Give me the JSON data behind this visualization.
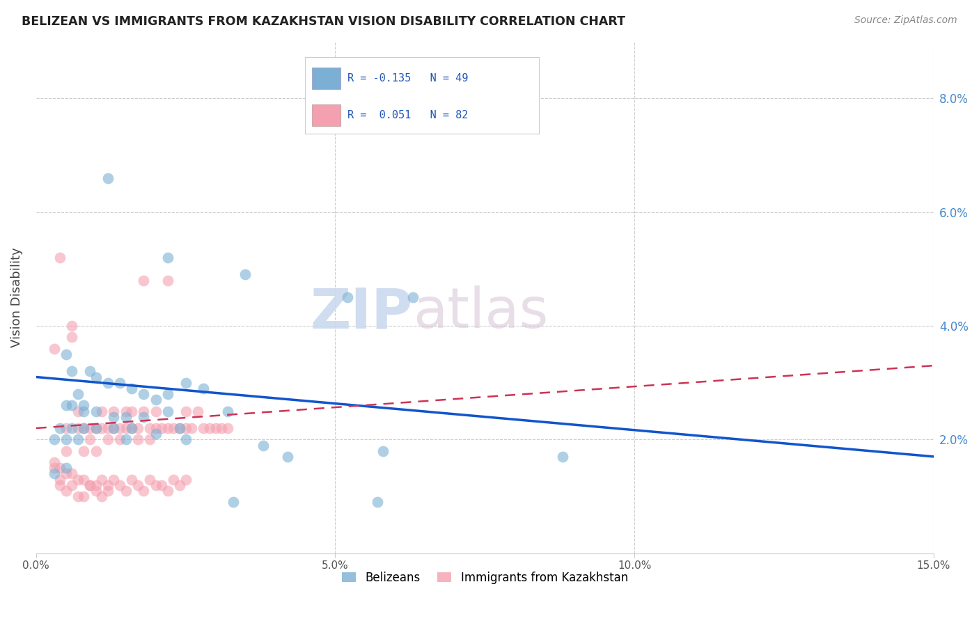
{
  "title": "BELIZEAN VS IMMIGRANTS FROM KAZAKHSTAN VISION DISABILITY CORRELATION CHART",
  "source": "Source: ZipAtlas.com",
  "ylabel": "Vision Disability",
  "ylabel_right_ticks": [
    "2.0%",
    "4.0%",
    "6.0%",
    "8.0%"
  ],
  "ylabel_right_vals": [
    0.02,
    0.04,
    0.06,
    0.08
  ],
  "xlim": [
    0.0,
    0.15
  ],
  "ylim": [
    0.0,
    0.09
  ],
  "xtick_vals": [
    0.0,
    0.05,
    0.1,
    0.15
  ],
  "xtick_labels": [
    "0.0%",
    "5.0%",
    "10.0%",
    "15.0%"
  ],
  "legend_blue_label": "R = -0.135   N = 49",
  "legend_pink_label": "R =  0.051   N = 82",
  "legend_label_blue": "Belizeans",
  "legend_label_pink": "Immigrants from Kazakhstan",
  "blue_color": "#7bafd4",
  "pink_color": "#f4a0b0",
  "blue_line_color": "#1155cc",
  "pink_line_color": "#cc3355",
  "watermark_zip": "ZIP",
  "watermark_atlas": "atlas",
  "blue_scatter_x": [
    0.012,
    0.022,
    0.005,
    0.006,
    0.007,
    0.008,
    0.009,
    0.01,
    0.012,
    0.014,
    0.016,
    0.018,
    0.02,
    0.022,
    0.025,
    0.028,
    0.032,
    0.005,
    0.006,
    0.008,
    0.01,
    0.013,
    0.015,
    0.018,
    0.022,
    0.004,
    0.006,
    0.008,
    0.01,
    0.013,
    0.016,
    0.02,
    0.024,
    0.003,
    0.005,
    0.007,
    0.015,
    0.025,
    0.038,
    0.042,
    0.058,
    0.063,
    0.088,
    0.052,
    0.005,
    0.003,
    0.057,
    0.033,
    0.035
  ],
  "blue_scatter_y": [
    0.066,
    0.052,
    0.035,
    0.032,
    0.028,
    0.026,
    0.032,
    0.031,
    0.03,
    0.03,
    0.029,
    0.028,
    0.027,
    0.028,
    0.03,
    0.029,
    0.025,
    0.026,
    0.026,
    0.025,
    0.025,
    0.024,
    0.024,
    0.024,
    0.025,
    0.022,
    0.022,
    0.022,
    0.022,
    0.022,
    0.022,
    0.021,
    0.022,
    0.02,
    0.02,
    0.02,
    0.02,
    0.02,
    0.019,
    0.017,
    0.018,
    0.045,
    0.017,
    0.045,
    0.015,
    0.014,
    0.009,
    0.009,
    0.049
  ],
  "pink_scatter_x": [
    0.003,
    0.004,
    0.005,
    0.005,
    0.006,
    0.006,
    0.007,
    0.007,
    0.008,
    0.008,
    0.009,
    0.009,
    0.01,
    0.01,
    0.011,
    0.011,
    0.012,
    0.012,
    0.013,
    0.013,
    0.014,
    0.014,
    0.015,
    0.015,
    0.016,
    0.016,
    0.017,
    0.017,
    0.018,
    0.018,
    0.019,
    0.019,
    0.02,
    0.02,
    0.021,
    0.022,
    0.022,
    0.023,
    0.024,
    0.025,
    0.025,
    0.026,
    0.027,
    0.028,
    0.029,
    0.03,
    0.031,
    0.032,
    0.003,
    0.004,
    0.004,
    0.005,
    0.006,
    0.007,
    0.008,
    0.009,
    0.01,
    0.011,
    0.012,
    0.013,
    0.014,
    0.015,
    0.016,
    0.017,
    0.018,
    0.019,
    0.02,
    0.021,
    0.022,
    0.023,
    0.024,
    0.025,
    0.003,
    0.004,
    0.005,
    0.006,
    0.007,
    0.008,
    0.009,
    0.01,
    0.011,
    0.012
  ],
  "pink_scatter_y": [
    0.036,
    0.052,
    0.022,
    0.018,
    0.04,
    0.038,
    0.025,
    0.022,
    0.022,
    0.018,
    0.022,
    0.02,
    0.022,
    0.018,
    0.025,
    0.022,
    0.022,
    0.02,
    0.025,
    0.022,
    0.022,
    0.02,
    0.025,
    0.022,
    0.025,
    0.022,
    0.022,
    0.02,
    0.025,
    0.048,
    0.022,
    0.02,
    0.025,
    0.022,
    0.022,
    0.022,
    0.048,
    0.022,
    0.022,
    0.025,
    0.022,
    0.022,
    0.025,
    0.022,
    0.022,
    0.022,
    0.022,
    0.022,
    0.015,
    0.013,
    0.012,
    0.011,
    0.012,
    0.01,
    0.01,
    0.012,
    0.011,
    0.01,
    0.011,
    0.013,
    0.012,
    0.011,
    0.013,
    0.012,
    0.011,
    0.013,
    0.012,
    0.012,
    0.011,
    0.013,
    0.012,
    0.013,
    0.016,
    0.015,
    0.014,
    0.014,
    0.013,
    0.013,
    0.012,
    0.012,
    0.013,
    0.012
  ],
  "blue_line_x": [
    0.0,
    0.15
  ],
  "blue_line_y": [
    0.031,
    0.017
  ],
  "pink_line_x": [
    0.0,
    0.15
  ],
  "pink_line_y": [
    0.022,
    0.033
  ]
}
